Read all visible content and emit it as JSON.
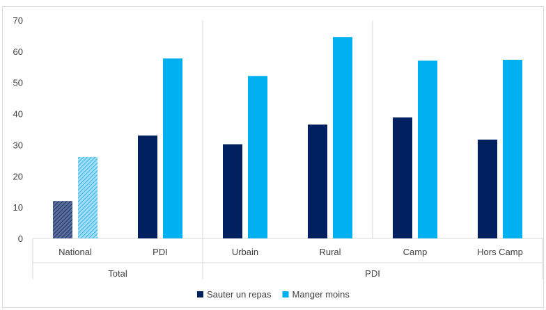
{
  "chart_data": {
    "type": "bar",
    "ylim": [
      0,
      70
    ],
    "yticks": [
      "0",
      "10",
      "20",
      "30",
      "40",
      "50",
      "60",
      "70"
    ],
    "categories": [
      "National",
      "PDI",
      "Urbain",
      "Rural",
      "Camp",
      "Hors Camp"
    ],
    "groups": [
      {
        "label": "Total",
        "span": [
          0,
          1
        ]
      },
      {
        "label": "PDI",
        "span": [
          2,
          5
        ]
      }
    ],
    "series": [
      {
        "name": "Sauter un repas",
        "color": "#002060",
        "values": [
          12,
          33,
          30.2,
          36.5,
          38.8,
          31.7
        ]
      },
      {
        "name": "Manger moins",
        "color": "#00b0f0",
        "values": [
          26.1,
          57.7,
          52.1,
          64.6,
          57,
          57.3
        ]
      }
    ],
    "hatched_categories": [
      0
    ],
    "legend_position": "bottom",
    "grid": false
  }
}
